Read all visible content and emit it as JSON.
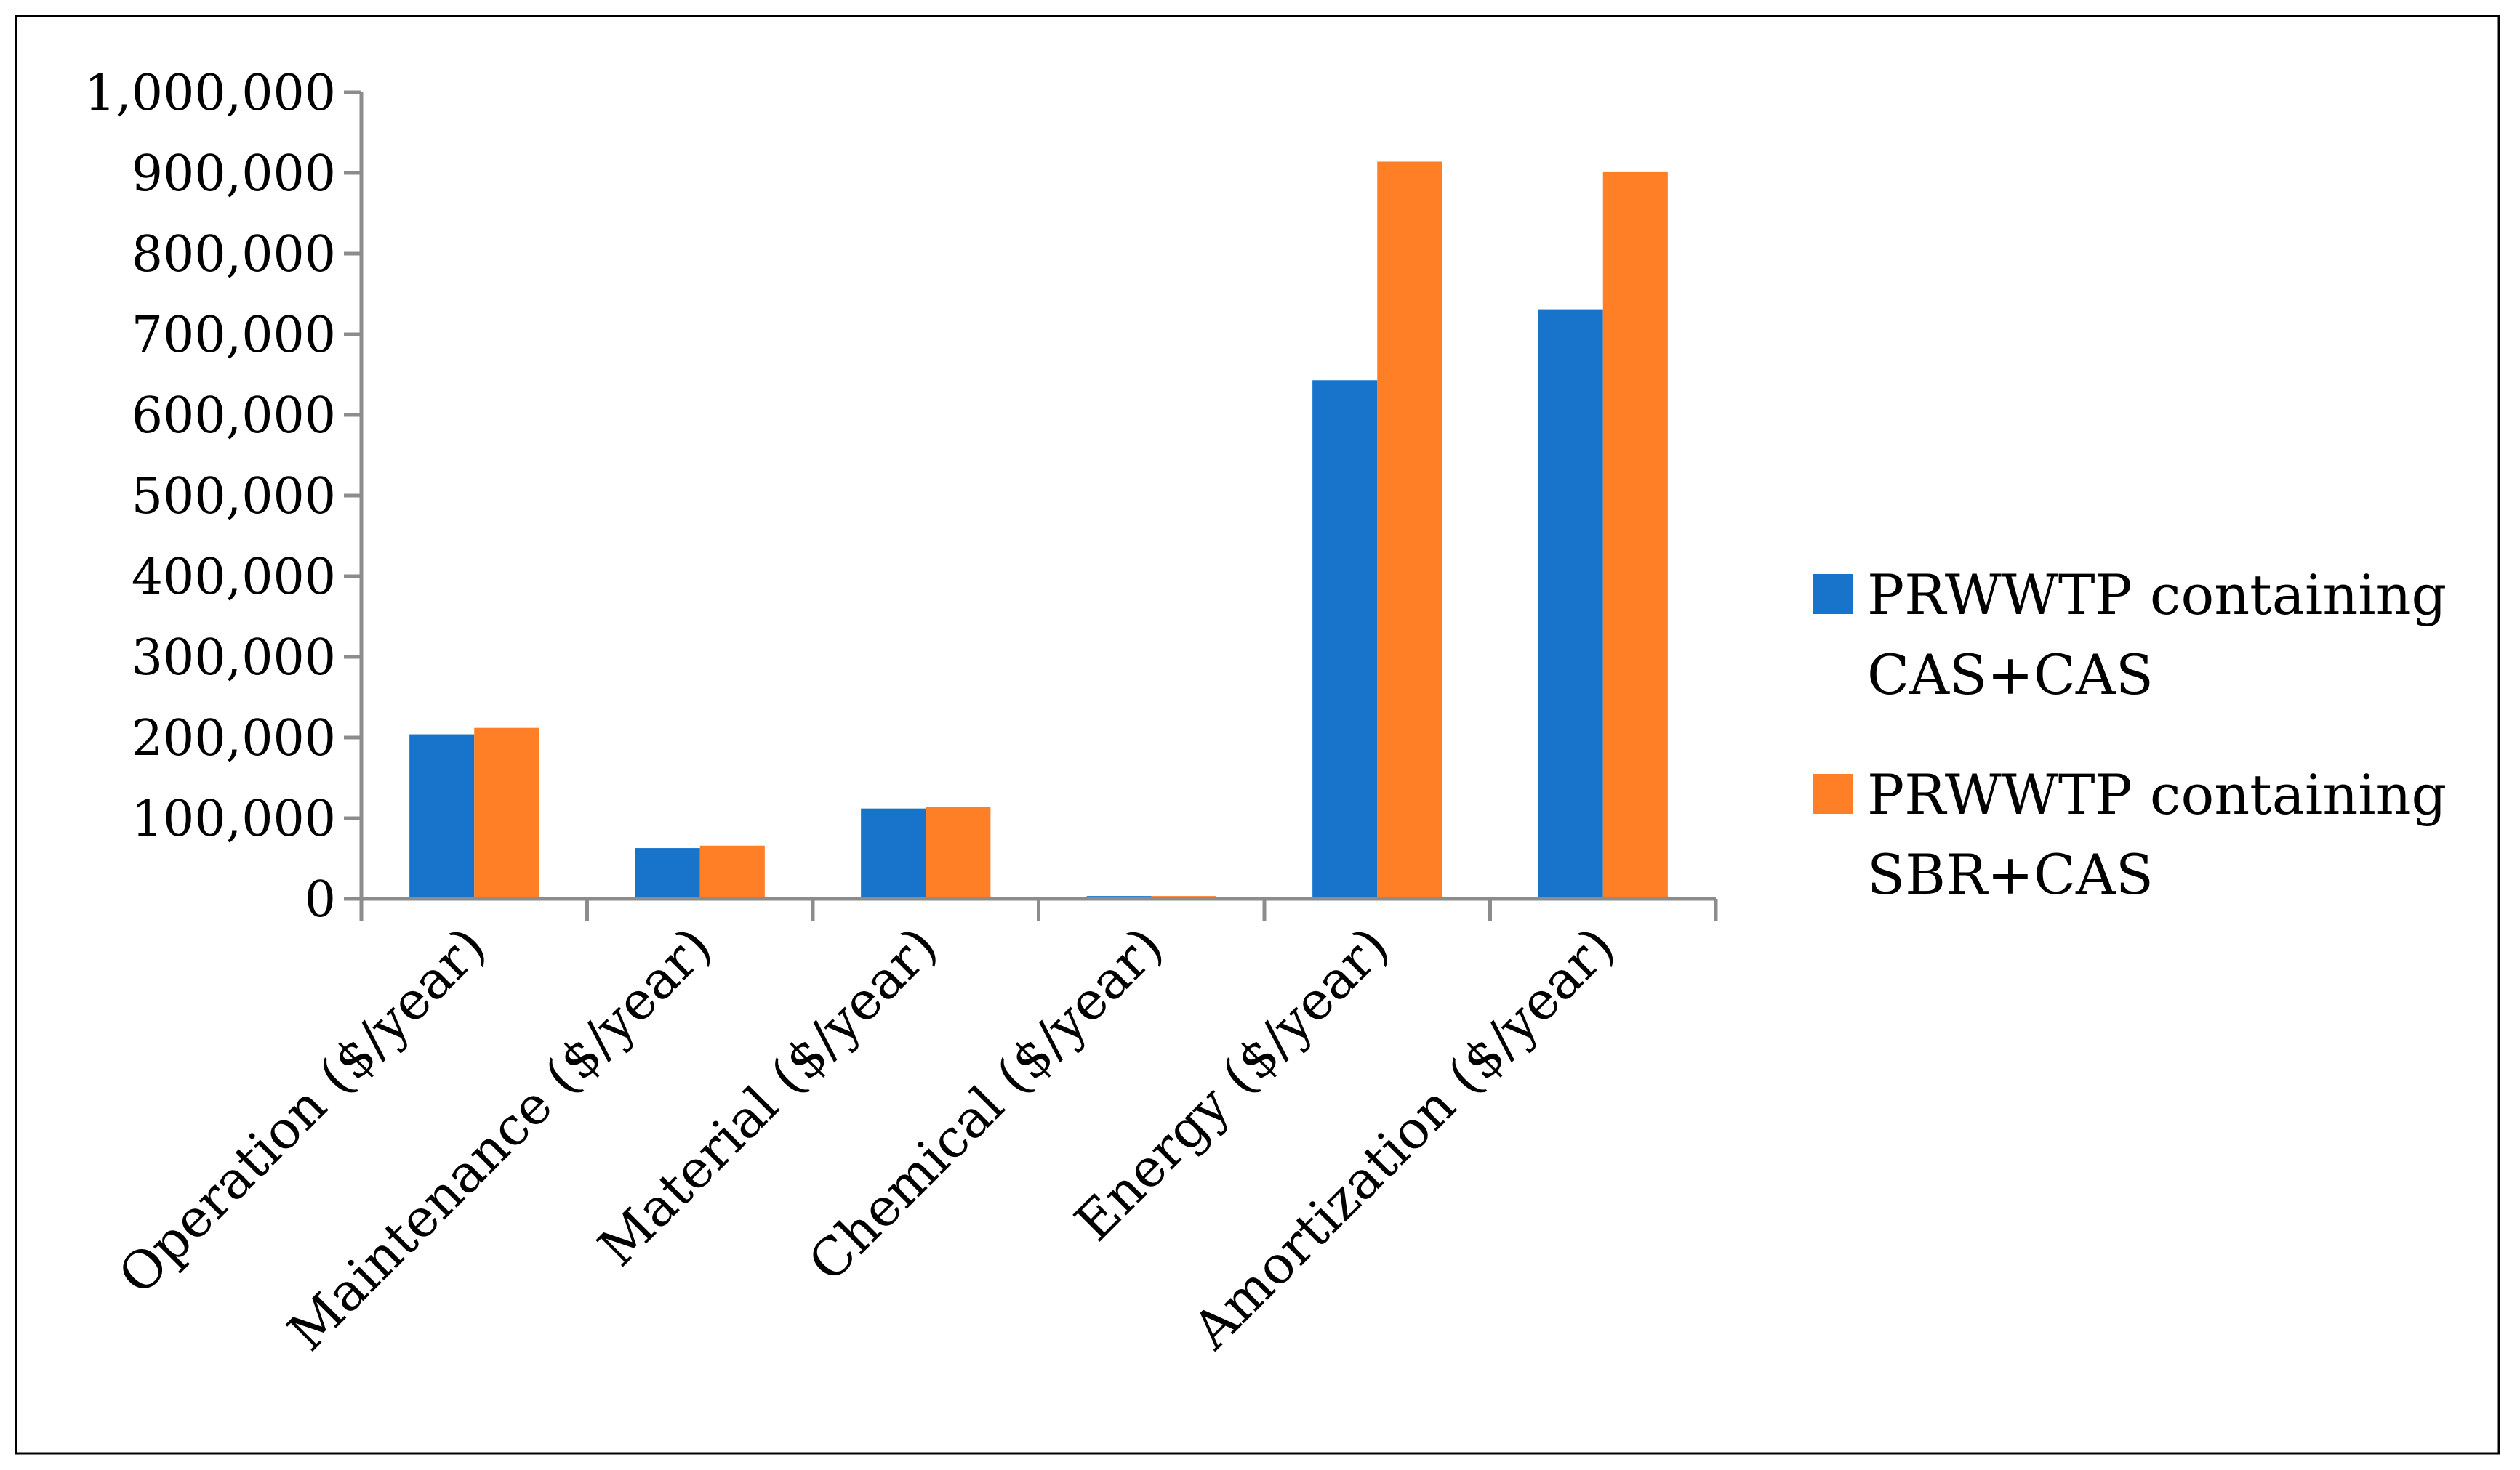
{
  "chart_data": {
    "type": "bar",
    "title": "",
    "xlabel": "",
    "ylabel": "",
    "categories": [
      "Operation ($/year)",
      "Maintenance ($/year)",
      "Material ($/year)",
      "Chemical ($/year)",
      "Energy ($/year)",
      "Amortization ($/year)"
    ],
    "series": [
      {
        "name": "PRWWTP containing CAS+CAS",
        "legend_lines": [
          "PRWWTP containing",
          "CAS+CAS"
        ],
        "color": "#1874CA",
        "values": [
          204000,
          63000,
          112000,
          3500,
          643000,
          731000
        ]
      },
      {
        "name": "PRWWTP containing SBR+CAS",
        "legend_lines": [
          "PRWWTP containing",
          "SBR+CAS"
        ],
        "color": "#FF7F27",
        "values": [
          212000,
          66000,
          113500,
          3500,
          914000,
          901000
        ]
      }
    ],
    "ylim": [
      0,
      1000000
    ],
    "yticks": [
      0,
      100000,
      200000,
      300000,
      400000,
      500000,
      600000,
      700000,
      800000,
      900000,
      1000000
    ],
    "ytick_labels": [
      "0",
      "100,000",
      "200,000",
      "300,000",
      "400,000",
      "500,000",
      "600,000",
      "700,000",
      "800,000",
      "900,000",
      "1,000,000"
    ],
    "grid": false,
    "legend_position": "right",
    "axis_color": "#8C8C8C"
  }
}
